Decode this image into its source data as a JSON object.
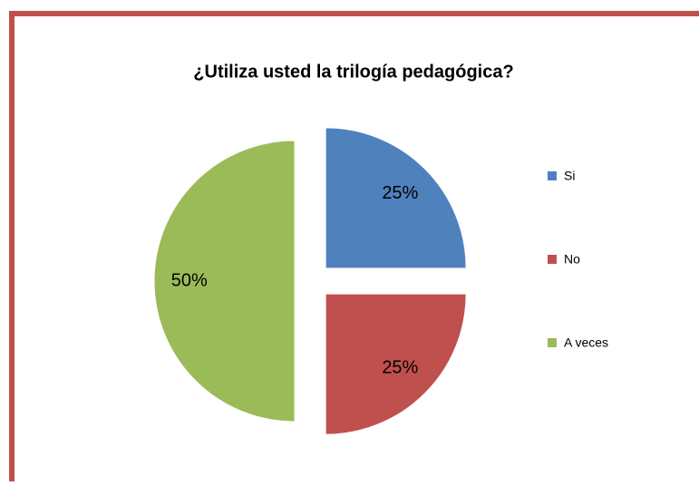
{
  "chart_data": {
    "type": "pie",
    "title": "¿Utiliza usted la trilogía pedagógica?",
    "categories": [
      "Si",
      "No",
      "A veces"
    ],
    "values": [
      25,
      25,
      50
    ],
    "value_labels": [
      "25%",
      "25%",
      "50%"
    ],
    "colors": [
      "#4f81bd",
      "#c0504d",
      "#9bbb59"
    ],
    "legend": "right"
  }
}
